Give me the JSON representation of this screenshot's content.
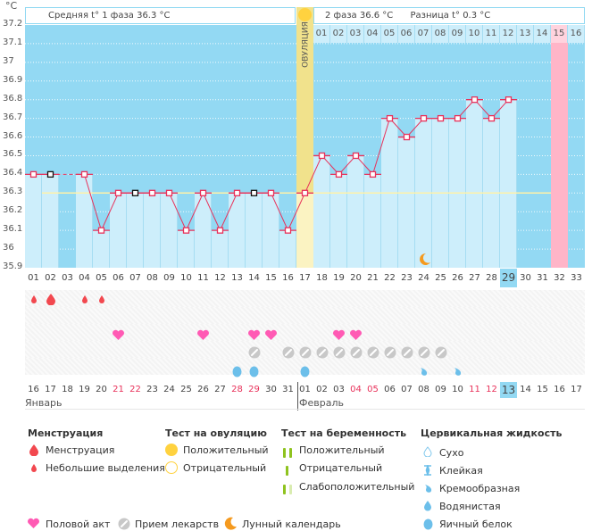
{
  "unit": "°C",
  "header": {
    "phase1_label": "Средняя t° 1 фаза 36.3 °С",
    "phase2_label": "2 фаза 36.6 °С",
    "diff_label": "Разница t° 0.3 °С",
    "ovulation_label": "ОВУЛЯЦИЯ",
    "upcoming_days": [
      "01",
      "02",
      "03",
      "04",
      "05",
      "06",
      "07",
      "08",
      "09",
      "10",
      "11",
      "12",
      "13",
      "14",
      "15",
      "16"
    ]
  },
  "colors": {
    "sky": "#93d9f3",
    "bar": "#cdeefb",
    "line": "#e8315a",
    "ovulation": "#fbf3c2",
    "ovulation_dark": "#f1e28c",
    "expected_period": "#ffb5c8",
    "coverline": "#fff2a8",
    "today": "#93d9f3"
  },
  "chart_data": {
    "type": "line",
    "title": "Basal body temperature chart",
    "ylabel": "°C",
    "ylim": [
      35.9,
      37.2
    ],
    "yticks": [
      "37.2",
      "37.1",
      "37",
      "36.9",
      "36.8",
      "36.7",
      "36.6",
      "36.5",
      "36.4",
      "36.3",
      "36.2",
      "36.1",
      "36",
      "35.9"
    ],
    "cycle_days": [
      "01",
      "02",
      "03",
      "04",
      "05",
      "06",
      "07",
      "08",
      "09",
      "10",
      "11",
      "12",
      "13",
      "14",
      "15",
      "16",
      "17",
      "18",
      "19",
      "20",
      "21",
      "22",
      "23",
      "24",
      "25",
      "26",
      "27",
      "28",
      "29",
      "30",
      "31",
      "32",
      "33"
    ],
    "temperatures": [
      36.4,
      36.4,
      null,
      36.4,
      36.1,
      36.3,
      36.3,
      36.3,
      36.3,
      36.1,
      36.3,
      36.1,
      36.3,
      36.3,
      36.3,
      36.1,
      36.3,
      36.5,
      36.4,
      36.5,
      36.4,
      36.7,
      36.6,
      36.7,
      36.7,
      36.7,
      36.8,
      36.7,
      36.8,
      null,
      null,
      null,
      null
    ],
    "excluded_days": [
      "02",
      "07",
      "14"
    ],
    "coverline": 36.3,
    "ovulation_day": "17",
    "expected_period_day": "32",
    "today_cycle_day": "29",
    "moon_day": "24"
  },
  "calendar": {
    "dates": [
      "16",
      "17",
      "18",
      "19",
      "20",
      "21",
      "22",
      "23",
      "24",
      "25",
      "26",
      "27",
      "28",
      "29",
      "30",
      "31",
      "01",
      "02",
      "03",
      "04",
      "05",
      "06",
      "07",
      "08",
      "09",
      "10",
      "11",
      "12",
      "13",
      "14",
      "15",
      "16",
      "17"
    ],
    "weekend": [
      false,
      false,
      false,
      false,
      false,
      true,
      true,
      false,
      false,
      false,
      false,
      false,
      true,
      true,
      false,
      false,
      false,
      false,
      false,
      true,
      true,
      false,
      false,
      false,
      false,
      false,
      true,
      true,
      false,
      false,
      false,
      false,
      false
    ],
    "month1": "Январь",
    "month2": "Февраль",
    "today_index": 28
  },
  "events": {
    "menstruation": {
      "01": "small",
      "02": "heavy",
      "04": "small",
      "05": "small"
    },
    "intercourse": [
      "06",
      "11",
      "14",
      "15",
      "19",
      "20"
    ],
    "medication": [
      "14",
      "16",
      "17",
      "18",
      "19",
      "20",
      "21",
      "22",
      "23",
      "24",
      "25"
    ],
    "cervical": {
      "13": "egg",
      "14": "egg",
      "17": "egg",
      "24": "creamy",
      "26": "creamy"
    }
  },
  "legend": {
    "menstruation_title": "Менструация",
    "menstruation_items": [
      "Менструация",
      "Небольшие выделения"
    ],
    "ovulation_test_title": "Тест на овуляцию",
    "ovulation_test_items": [
      "Положительный",
      "Отрицательный"
    ],
    "pregnancy_test_title": "Тест на беременность",
    "pregnancy_test_items": [
      "Положительный",
      "Отрицательный",
      "Слабоположительный"
    ],
    "cervical_title": "Цервикальная жидкость",
    "cervical_items": [
      "Сухо",
      "Клейкая",
      "Кремообразная",
      "Водянистая",
      "Яичный белок"
    ],
    "other_items": [
      "Половой акт",
      "Прием лекарств",
      "Лунный календарь"
    ]
  }
}
